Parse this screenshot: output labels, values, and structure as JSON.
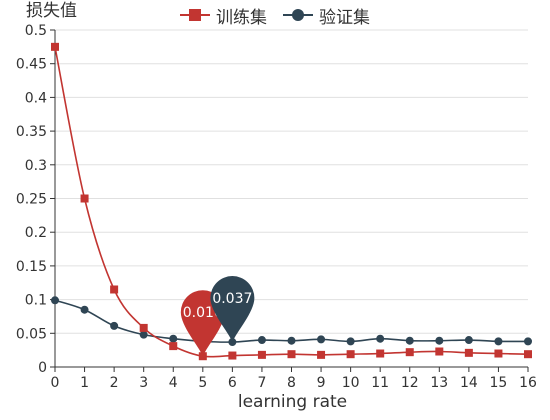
{
  "chart_data": {
    "type": "line",
    "ylabel": "损失值",
    "xlabel": "learning rate",
    "x": [
      0,
      1,
      2,
      3,
      4,
      5,
      6,
      7,
      8,
      9,
      10,
      11,
      12,
      13,
      14,
      15,
      16
    ],
    "xlim": [
      0,
      16
    ],
    "ylim": [
      0,
      0.5
    ],
    "yticks": [
      "0",
      "0.05",
      "0.1",
      "0.15",
      "0.2",
      "0.25",
      "0.3",
      "0.35",
      "0.4",
      "0.45",
      "0.5"
    ],
    "legend_position": "top",
    "grid": true,
    "series": [
      {
        "name": "训练集",
        "color": "#c23531",
        "marker": "square",
        "values": [
          0.475,
          0.25,
          0.115,
          0.058,
          0.031,
          0.016,
          0.017,
          0.018,
          0.019,
          0.018,
          0.019,
          0.02,
          0.022,
          0.023,
          0.021,
          0.02,
          0.019
        ],
        "pin": {
          "x": 5,
          "label": "0.016"
        }
      },
      {
        "name": "验证集",
        "color": "#2f4554",
        "marker": "circle",
        "values": [
          0.099,
          0.085,
          0.061,
          0.048,
          0.042,
          0.038,
          0.037,
          0.04,
          0.039,
          0.041,
          0.038,
          0.042,
          0.039,
          0.039,
          0.04,
          0.038,
          0.038
        ],
        "pin": {
          "x": 6,
          "label": "0.037"
        }
      }
    ]
  }
}
